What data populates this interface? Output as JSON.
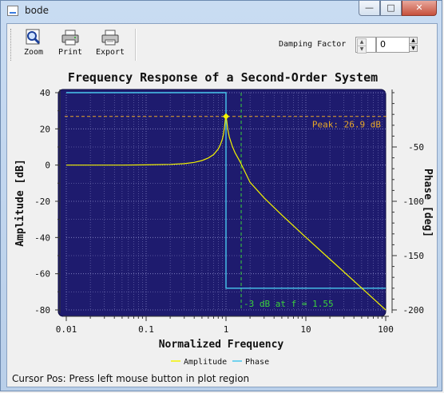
{
  "window": {
    "title": "bode",
    "buttons": {
      "minimize": "—",
      "maximize": "□",
      "close": "✕"
    }
  },
  "toolbar": {
    "zoom_label": "Zoom",
    "print_label": "Print",
    "export_label": "Export",
    "damping_label": "Damping Factor",
    "damping_value": "0"
  },
  "plot": {
    "title": "Frequency Response of a Second-Order System",
    "xlabel": "Normalized Frequency",
    "ylabel_left": "Amplitude [dB]",
    "ylabel_right": "Phase [deg]",
    "peak_annotation": "Peak: 26.9 dB",
    "cutoff_annotation": "-3 dB at f = 1.55",
    "legend": [
      "Amplitude",
      "Phase"
    ],
    "colors": {
      "canvas": "#1e1b6e",
      "amplitude": "#f2f200",
      "phase": "#48c8ee",
      "peak_marker": "#e8a828",
      "cutoff_marker": "#3ad23a"
    }
  },
  "chart_data": {
    "type": "line",
    "title": "Frequency Response of a Second-Order System",
    "xlabel": "Normalized Frequency",
    "x_scale": "log",
    "xlim": [
      0.01,
      100
    ],
    "x_ticks": [
      "0.01",
      "0.1",
      "1",
      "10",
      "100"
    ],
    "ylabel": "Amplitude [dB]",
    "ylim": [
      -80,
      40
    ],
    "y_ticks": [
      "40",
      "20",
      "0",
      "-20",
      "-40",
      "-60",
      "-80"
    ],
    "y2label": "Phase [deg]",
    "y2lim": [
      -200,
      0
    ],
    "y2_ticks": [
      "-50",
      "-100",
      "-150",
      "-200"
    ],
    "grid": true,
    "legend_position": "bottom",
    "series": [
      {
        "name": "Amplitude",
        "axis": "left",
        "x": [
          0.01,
          0.05,
          0.1,
          0.2,
          0.3,
          0.4,
          0.5,
          0.6,
          0.7,
          0.8,
          0.85,
          0.9,
          0.93,
          0.96,
          0.98,
          1.0,
          1.02,
          1.05,
          1.1,
          1.2,
          1.3,
          1.5,
          2,
          3,
          5,
          10,
          20,
          50,
          100
        ],
        "y": [
          0.0,
          0.0,
          0.1,
          0.4,
          0.8,
          1.5,
          2.5,
          3.9,
          5.8,
          8.9,
          11.2,
          14.2,
          17.0,
          21.2,
          25.0,
          26.9,
          24.6,
          20.1,
          15.6,
          10.4,
          6.8,
          1.9,
          -9.5,
          -18.1,
          -27.6,
          -39.9,
          -52.0,
          -67.9,
          -80.0
        ]
      },
      {
        "name": "Phase",
        "axis": "right",
        "x": [
          0.01,
          0.9999,
          1.0,
          1.0001,
          100
        ],
        "y": [
          0,
          0,
          -90,
          -180,
          -180
        ]
      }
    ],
    "annotations": [
      {
        "text": "Peak: 26.9 dB",
        "y": 26.9,
        "axis": "left"
      },
      {
        "text": "-3 dB at f = 1.55",
        "x": 1.55
      }
    ],
    "markers": [
      {
        "x": 1.0,
        "y": 26.9
      }
    ]
  },
  "status": {
    "text": "Cursor Pos: Press left mouse button in plot region"
  }
}
